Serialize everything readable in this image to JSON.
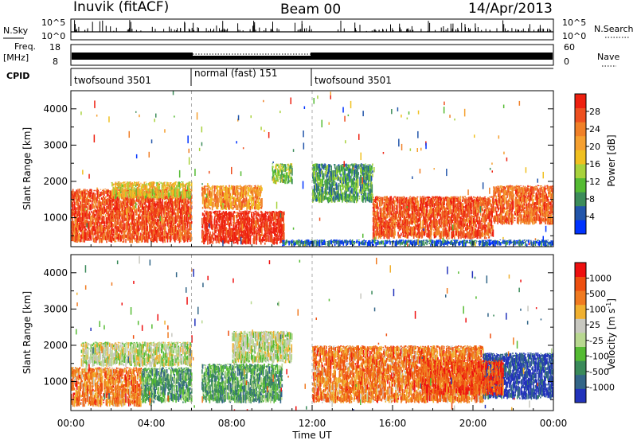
{
  "header": {
    "station": "Inuvik (fitACF)",
    "beam": "Beam 00",
    "date": "14/Apr/2013"
  },
  "summary_panel": {
    "nsky": {
      "label": "N.Sky",
      "ticks": [
        "10^5",
        "10^0"
      ]
    },
    "nsearch": {
      "label": "N.Search",
      "ticks": [
        "10^5",
        "10^0"
      ]
    },
    "freq": {
      "label_line1": "Freq.",
      "label_line2": "[MHz]",
      "ticks": [
        "18",
        "8"
      ]
    },
    "nave": {
      "label": "Nave",
      "ticks": [
        "60",
        "0"
      ]
    },
    "cpid": {
      "label": "CPID",
      "segments": [
        {
          "name": "twofsound 3501",
          "start_hour": 0,
          "end_hour": 6
        },
        {
          "name": "normal (fast) 151",
          "start_hour": 6,
          "end_hour": 12
        },
        {
          "name": "twofsound 3501",
          "start_hour": 12,
          "end_hour": 24
        }
      ]
    }
  },
  "colors": {
    "power_scale": [
      "#0033ff",
      "#2255aa",
      "#3c8c5a",
      "#55bb33",
      "#a8d23c",
      "#f0c020",
      "#f5a030",
      "#f08028",
      "#ee5020",
      "#ee2010"
    ],
    "velocity_scale": [
      "#2233bb",
      "#336688",
      "#3a8a5a",
      "#55bb33",
      "#b8d890",
      "#c8c8c0",
      "#f0b030",
      "#f07a20",
      "#ee5010",
      "#ee1010"
    ]
  },
  "chart_data": [
    {
      "type": "heatmap",
      "name": "power",
      "ylabel": "Slant Range [km]",
      "xlim_hours": [
        0,
        24
      ],
      "ylim_km": [
        200,
        4500
      ],
      "y_ticks": [
        1000,
        2000,
        3000,
        4000
      ],
      "colorbar": {
        "label": "Power [dB]",
        "ticks": [
          4,
          8,
          12,
          16,
          20,
          24,
          28
        ],
        "range": [
          0,
          32
        ]
      },
      "regions": [
        {
          "t0": 0.0,
          "t1": 6.0,
          "r0": 300,
          "r1": 1800,
          "level": 0.85
        },
        {
          "t0": 2.0,
          "t1": 6.0,
          "r0": 1500,
          "r1": 2000,
          "level": 0.55
        },
        {
          "t0": 6.5,
          "t1": 10.6,
          "r0": 250,
          "r1": 1200,
          "level": 0.95
        },
        {
          "t0": 6.5,
          "t1": 9.5,
          "r0": 1200,
          "r1": 1900,
          "level": 0.7
        },
        {
          "t0": 10.0,
          "t1": 11.0,
          "r0": 1900,
          "r1": 2500,
          "level": 0.4
        },
        {
          "t0": 12.0,
          "t1": 15.0,
          "r0": 1400,
          "r1": 2500,
          "level": 0.3
        },
        {
          "t0": 15.0,
          "t1": 21.0,
          "r0": 400,
          "r1": 1600,
          "level": 0.85
        },
        {
          "t0": 21.0,
          "t1": 24.0,
          "r0": 800,
          "r1": 1900,
          "level": 0.8
        },
        {
          "t0": 10.5,
          "t1": 24.0,
          "r0": 200,
          "r1": 400,
          "level": 0.15
        }
      ]
    },
    {
      "type": "heatmap",
      "name": "velocity",
      "ylabel": "Slant Range [km]",
      "xlabel": "Time UT",
      "xlim_hours": [
        0,
        24
      ],
      "ylim_km": [
        200,
        4500
      ],
      "y_ticks": [
        1000,
        2000,
        3000,
        4000
      ],
      "x_ticks": [
        "00:00",
        "04:00",
        "08:00",
        "12:00",
        "16:00",
        "20:00",
        "00:00"
      ],
      "colorbar": {
        "label_main": "Velocity  [m s",
        "label_sup": "-1",
        "label_end": "]",
        "ticks": [
          "1000",
          "500",
          "100",
          "25",
          "-25",
          "-100",
          "-500",
          "-1000"
        ]
      },
      "regions": [
        {
          "t0": 0.0,
          "t1": 3.5,
          "r0": 300,
          "r1": 1400,
          "level": 0.75
        },
        {
          "t0": 0.5,
          "t1": 6.0,
          "r0": 1400,
          "r1": 2100,
          "level": 0.5
        },
        {
          "t0": 3.5,
          "t1": 6.0,
          "r0": 400,
          "r1": 1400,
          "level": 0.3
        },
        {
          "t0": 6.5,
          "t1": 10.5,
          "r0": 400,
          "r1": 1500,
          "level": 0.3
        },
        {
          "t0": 8.0,
          "t1": 11.0,
          "r0": 1500,
          "r1": 2400,
          "level": 0.5
        },
        {
          "t0": 12.0,
          "t1": 20.5,
          "r0": 400,
          "r1": 2000,
          "level": 0.75
        },
        {
          "t0": 20.5,
          "t1": 24.0,
          "r0": 500,
          "r1": 1800,
          "level": 0.05
        },
        {
          "t0": 17.5,
          "t1": 21.5,
          "r0": 600,
          "r1": 1600,
          "level": 0.85
        }
      ]
    }
  ]
}
